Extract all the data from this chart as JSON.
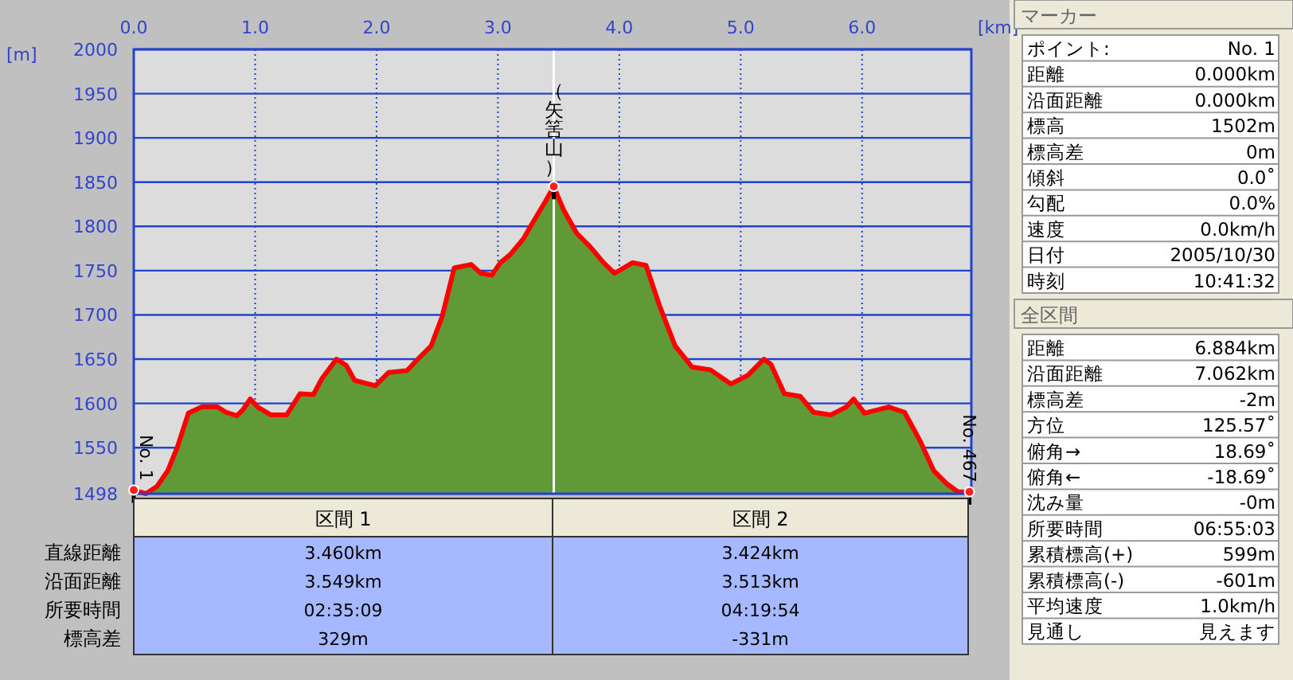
{
  "chart_data": [
    {
      "type": "area",
      "xlabel": "[km]",
      "ylabel": "[m]",
      "xlim": [
        0,
        6.9
      ],
      "ylim": [
        1498,
        2000
      ],
      "xticks": [
        {
          "value": 0,
          "label": "0.0"
        },
        {
          "value": 1,
          "label": "1.0"
        },
        {
          "value": 2,
          "label": "2.0"
        },
        {
          "value": 3,
          "label": "3.0"
        },
        {
          "value": 4,
          "label": "4.0"
        },
        {
          "value": 5,
          "label": "5.0"
        },
        {
          "value": 6,
          "label": "6.0"
        }
      ],
      "yticks": [
        1498,
        1550,
        1600,
        1650,
        1700,
        1750,
        1800,
        1850,
        1900,
        1950,
        2000
      ],
      "grid": true,
      "x": [
        0,
        0.1,
        0.19,
        0.28,
        0.36,
        0.45,
        0.56,
        0.69,
        0.76,
        0.85,
        0.9,
        0.96,
        1.02,
        1.13,
        1.26,
        1.37,
        1.48,
        1.55,
        1.67,
        1.75,
        1.82,
        1.99,
        2.1,
        2.25,
        2.34,
        2.45,
        2.54,
        2.64,
        2.78,
        2.86,
        2.95,
        3.02,
        3.1,
        3.21,
        3.26,
        3.39,
        3.46,
        3.54,
        3.65,
        3.76,
        3.87,
        3.96,
        4.11,
        4.22,
        4.33,
        4.46,
        4.6,
        4.75,
        4.92,
        5.06,
        5.19,
        5.25,
        5.36,
        5.49,
        5.6,
        5.74,
        5.87,
        5.93,
        6.02,
        6.22,
        6.35,
        6.48,
        6.59,
        6.7,
        6.79,
        6.884
      ],
      "series": [
        {
          "color": "#5f9a37",
          "values": [
            1502,
            1498,
            1506,
            1524,
            1551,
            1589,
            1596,
            1596,
            1590,
            1586,
            1593,
            1605,
            1596,
            1587,
            1587,
            1611,
            1610,
            1628,
            1650,
            1643,
            1626,
            1620,
            1635,
            1637,
            1650,
            1665,
            1698,
            1753,
            1757,
            1747,
            1745,
            1759,
            1768,
            1786,
            1798,
            1828,
            1845,
            1819,
            1792,
            1777,
            1759,
            1747,
            1759,
            1756,
            1711,
            1665,
            1641,
            1638,
            1622,
            1632,
            1650,
            1644,
            1611,
            1608,
            1590,
            1587,
            1596,
            1605,
            1589,
            1596,
            1590,
            1557,
            1524,
            1509,
            1500,
            1500
          ]
        }
      ],
      "ref_lines": [
        {
          "axis": "x",
          "value": 3.46,
          "color": "#ffffff"
        }
      ],
      "annotations": [
        {
          "text": "（矢筈山）",
          "x": 3.46,
          "y": 1845
        },
        {
          "text": "No. 1",
          "x": 0,
          "y": 1502
        },
        {
          "text": "No. 467",
          "x": 6.884,
          "y": 1500
        }
      ]
    },
    {
      "type": "other",
      "annotations": [
        "区間 1",
        "区間 2",
        "直線距離",
        "3.460km",
        "3.424km",
        "沿面距離",
        "3.549km",
        "3.513km",
        "所要時間",
        "02:35:09",
        "04:19:54",
        "標高差",
        "329m",
        "-331m"
      ]
    },
    {
      "type": "other",
      "title": "マーカー",
      "annotations": [
        "ポイント:",
        "No. 1",
        "距離",
        "0.000km",
        "沿面距離",
        "0.000km",
        "標高",
        "1502m",
        "標高差",
        "0m",
        "傾斜",
        "0.0˚",
        "勾配",
        "0.0%",
        "速度",
        "0.0km/h",
        "日付",
        "2005/10/30",
        "時刻",
        "10:41:32"
      ]
    },
    {
      "type": "other",
      "title": "全区間",
      "annotations": [
        "距離",
        "6.884km",
        "沿面距離",
        "7.062km",
        "標高差",
        "-2m",
        "方位",
        "125.57˚",
        "俯角→",
        "18.69˚",
        "俯角←",
        "-18.69˚",
        "沈み量",
        "-0m",
        "所要時間",
        "06:55:03",
        "累積標高(+)",
        "599m",
        "累積標高(-)",
        "-601m",
        "平均速度",
        "1.0km/h",
        "見通し",
        "見えます"
      ]
    }
  ]
}
